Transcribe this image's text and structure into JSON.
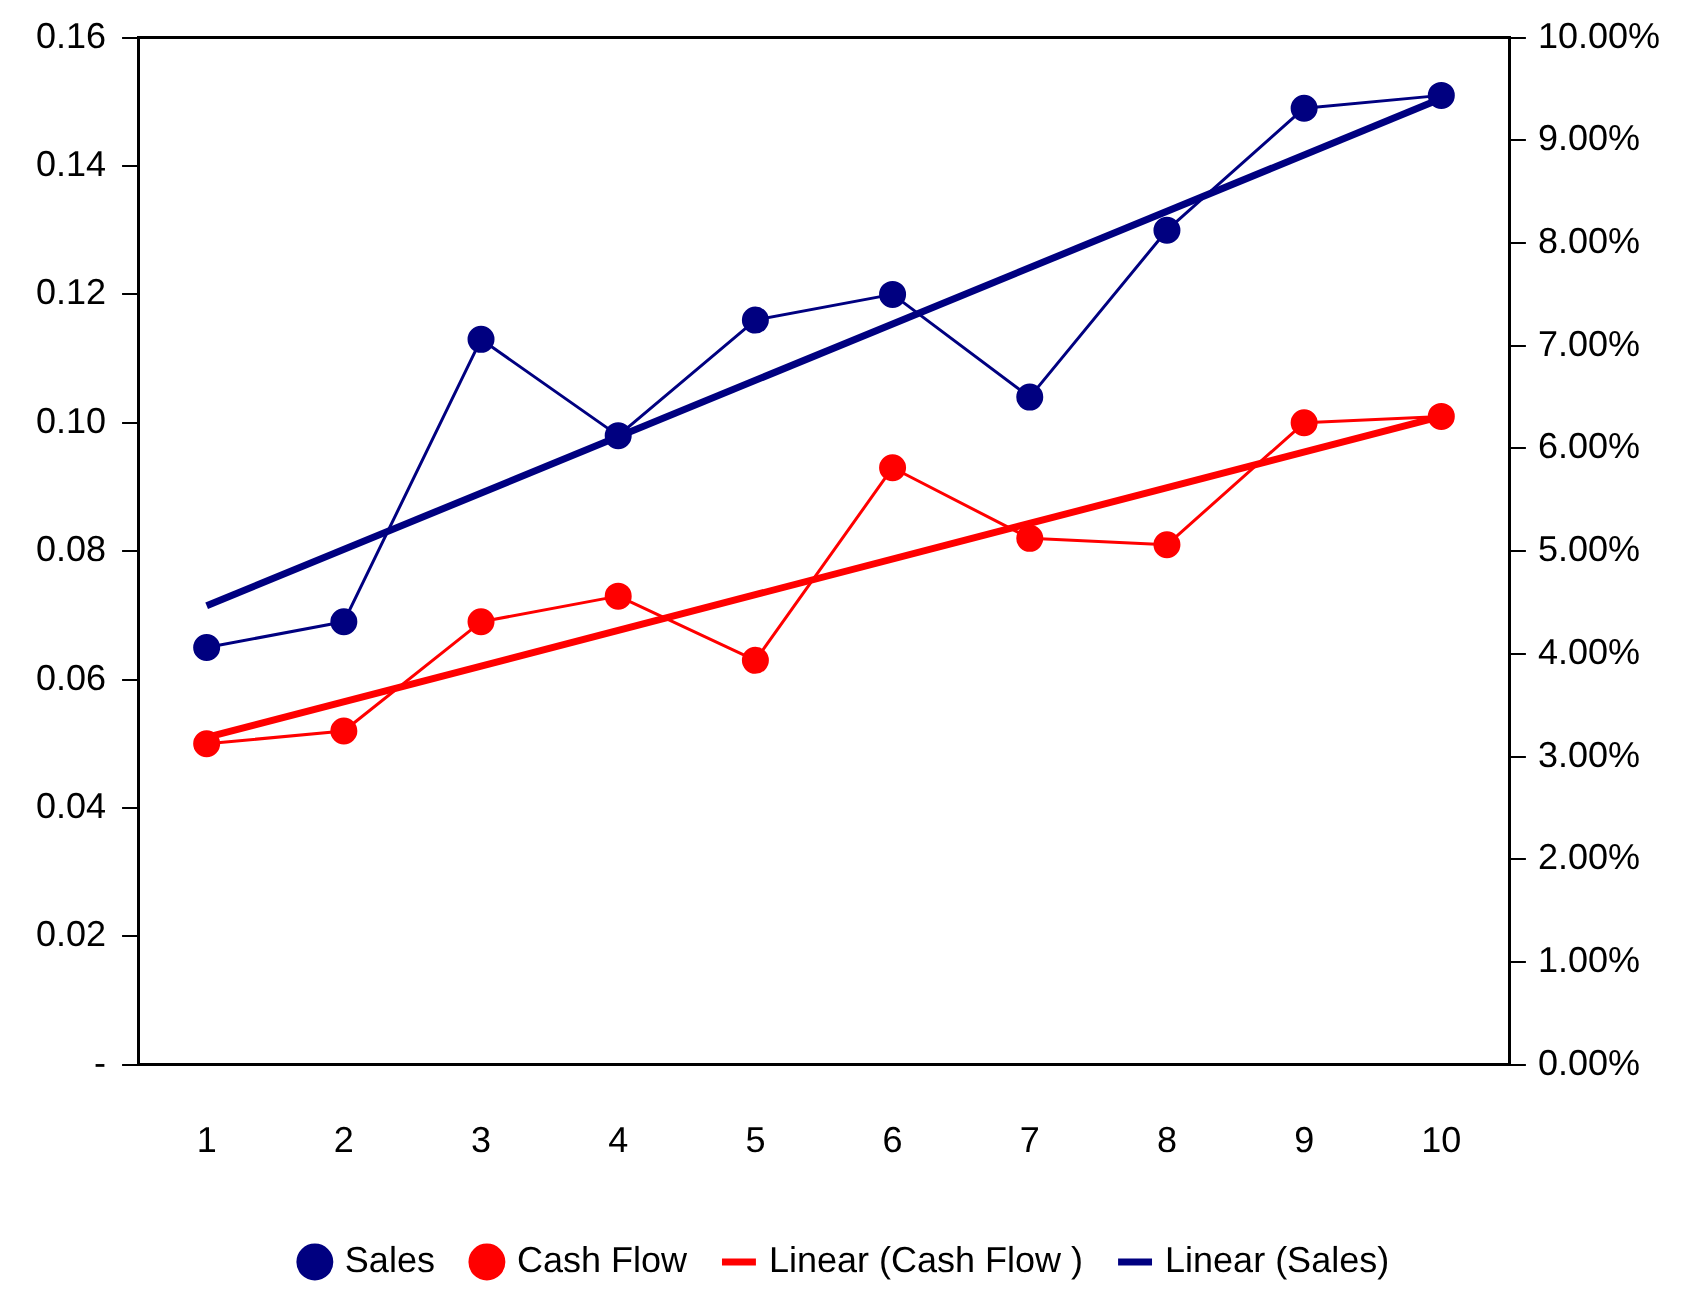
{
  "chart_data": {
    "type": "line",
    "categories": [
      "1",
      "2",
      "3",
      "4",
      "5",
      "6",
      "7",
      "8",
      "9",
      "10"
    ],
    "series": [
      {
        "name": "Sales",
        "color": "#000080",
        "marker": "circle",
        "values": [
          0.065,
          0.069,
          0.113,
          0.098,
          0.116,
          0.12,
          0.104,
          0.13,
          0.149,
          0.151
        ]
      },
      {
        "name": "Cash Flow",
        "color": "#ff0000",
        "marker": "circle",
        "values": [
          0.05,
          0.052,
          0.069,
          0.073,
          0.063,
          0.093,
          0.082,
          0.081,
          0.1,
          0.101
        ]
      },
      {
        "name": "Linear (Cash Flow )",
        "color": "#ff0000",
        "marker": "none",
        "x": [
          "1",
          "10"
        ],
        "values": [
          0.051,
          0.101
        ]
      },
      {
        "name": "Linear (Sales)",
        "color": "#000080",
        "marker": "none",
        "x": [
          "1",
          "10"
        ],
        "values": [
          0.0715,
          0.1505
        ]
      }
    ],
    "ylim": [
      0,
      0.16
    ],
    "yticks": [
      {
        "value": 0,
        "label": "-"
      },
      {
        "value": 0.02,
        "label": "0.02"
      },
      {
        "value": 0.04,
        "label": "0.04"
      },
      {
        "value": 0.06,
        "label": "0.06"
      },
      {
        "value": 0.08,
        "label": "0.08"
      },
      {
        "value": 0.1,
        "label": "0.10"
      },
      {
        "value": 0.12,
        "label": "0.12"
      },
      {
        "value": 0.14,
        "label": "0.14"
      },
      {
        "value": 0.16,
        "label": "0.16"
      }
    ],
    "y2lim": [
      0,
      10
    ],
    "y2ticks": [
      {
        "value": 0,
        "label": "0.00%"
      },
      {
        "value": 1,
        "label": "1.00%"
      },
      {
        "value": 2,
        "label": "2.00%"
      },
      {
        "value": 3,
        "label": "3.00%"
      },
      {
        "value": 4,
        "label": "4.00%"
      },
      {
        "value": 5,
        "label": "5.00%"
      },
      {
        "value": 6,
        "label": "6.00%"
      },
      {
        "value": 7,
        "label": "7.00%"
      },
      {
        "value": 8,
        "label": "8.00%"
      },
      {
        "value": 9,
        "label": "9.00%"
      },
      {
        "value": 10,
        "label": "10.00%"
      }
    ],
    "grid": false,
    "legend": "bottom"
  }
}
